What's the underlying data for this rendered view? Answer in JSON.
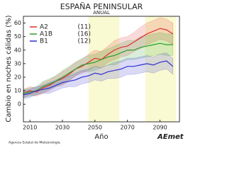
{
  "chart_data": {
    "type": "line",
    "title": "ESPAÑA PENINSULAR",
    "subtitle": "ANUAL",
    "y_label": "Cambio en noches cálidas (%)",
    "x_label": "Año",
    "x": [
      2006,
      2010,
      2014,
      2018,
      2022,
      2026,
      2030,
      2034,
      2038,
      2042,
      2046,
      2050,
      2054,
      2058,
      2062,
      2066,
      2070,
      2074,
      2078,
      2082,
      2086,
      2090,
      2094,
      2098
    ],
    "series": [
      {
        "name": "A2",
        "models": 11,
        "models_label": "(11)",
        "color": "#e03030",
        "values": [
          8,
          10,
          9,
          12,
          14,
          17,
          19,
          22,
          26,
          28,
          31,
          34,
          33,
          37,
          40,
          42,
          43,
          46,
          49,
          52,
          54,
          56,
          55,
          52
        ],
        "lower": [
          5,
          7,
          6,
          8,
          10,
          13,
          14,
          17,
          21,
          23,
          25,
          28,
          27,
          31,
          33,
          35,
          36,
          39,
          41,
          44,
          46,
          48,
          47,
          44
        ],
        "upper": [
          11,
          13,
          12,
          16,
          18,
          21,
          24,
          27,
          31,
          33,
          37,
          40,
          39,
          43,
          47,
          49,
          50,
          53,
          57,
          60,
          62,
          64,
          63,
          60
        ]
      },
      {
        "name": "A1B",
        "models": 16,
        "models_label": "(16)",
        "color": "#2e9e2e",
        "values": [
          8,
          9,
          10,
          13,
          15,
          17,
          20,
          23,
          26,
          29,
          30,
          31,
          33,
          35,
          36,
          38,
          40,
          40,
          42,
          43,
          44,
          45,
          44,
          44
        ],
        "lower": [
          5,
          6,
          7,
          9,
          11,
          13,
          15,
          18,
          21,
          24,
          24,
          25,
          27,
          29,
          29,
          31,
          33,
          33,
          34,
          35,
          36,
          37,
          36,
          36
        ],
        "upper": [
          11,
          12,
          13,
          17,
          19,
          21,
          25,
          28,
          31,
          34,
          36,
          37,
          39,
          41,
          43,
          45,
          47,
          47,
          50,
          51,
          52,
          53,
          52,
          52
        ]
      },
      {
        "name": "B1",
        "models": 12,
        "models_label": "(12)",
        "color": "#3030d0",
        "values": [
          7,
          8,
          10,
          11,
          12,
          14,
          16,
          17,
          18,
          20,
          21,
          23,
          22,
          24,
          25,
          26,
          28,
          28,
          29,
          30,
          29,
          31,
          32,
          28
        ],
        "lower": [
          4,
          5,
          7,
          8,
          8,
          10,
          12,
          13,
          13,
          15,
          16,
          18,
          17,
          19,
          19,
          20,
          22,
          22,
          23,
          24,
          23,
          25,
          26,
          22
        ],
        "upper": [
          10,
          11,
          13,
          14,
          16,
          18,
          20,
          21,
          23,
          25,
          26,
          28,
          27,
          29,
          31,
          32,
          34,
          34,
          35,
          36,
          35,
          37,
          38,
          34
        ]
      }
    ],
    "periods": [
      [
        2046,
        2065
      ],
      [
        2081,
        2100
      ]
    ],
    "period_color": "#fafad2",
    "xlim": [
      2006,
      2102
    ],
    "ylim": [
      -13,
      65
    ],
    "xticks": [
      2010,
      2030,
      2050,
      2070,
      2090
    ],
    "yticks": [
      0,
      10,
      20,
      30,
      40,
      50,
      60
    ]
  },
  "footer": {
    "agency": "Agencia Estatal de Meteorología",
    "logo": "AEmet"
  }
}
